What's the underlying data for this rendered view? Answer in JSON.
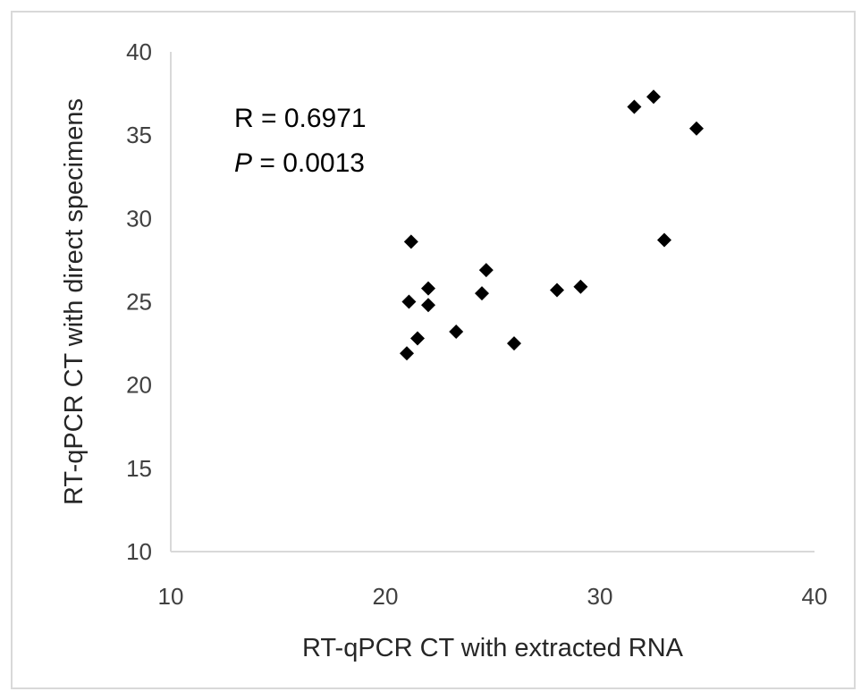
{
  "chart_data": {
    "type": "scatter",
    "xlabel": "RT-qPCR CT with extracted RNA",
    "ylabel": "RT-qPCR CT with direct specimens",
    "xlim": [
      10,
      40
    ],
    "ylim": [
      10,
      40
    ],
    "x_ticks": [
      "10",
      "20",
      "30",
      "40"
    ],
    "y_ticks": [
      "10",
      "15",
      "20",
      "25",
      "30",
      "35",
      "40"
    ],
    "grid": false,
    "legend": "none",
    "marker": "diamond",
    "marker_color": "#000000",
    "annotations": {
      "r_text": "R = 0.6971",
      "p_symbol": "P",
      "p_value_text": " = 0.0013"
    },
    "points": [
      {
        "x": 21.0,
        "y": 21.9
      },
      {
        "x": 21.5,
        "y": 22.8
      },
      {
        "x": 21.2,
        "y": 28.6
      },
      {
        "x": 21.1,
        "y": 25.0
      },
      {
        "x": 22.0,
        "y": 24.8
      },
      {
        "x": 22.0,
        "y": 25.8
      },
      {
        "x": 23.3,
        "y": 23.2
      },
      {
        "x": 24.5,
        "y": 25.5
      },
      {
        "x": 24.7,
        "y": 26.9
      },
      {
        "x": 26.0,
        "y": 22.5
      },
      {
        "x": 28.0,
        "y": 25.7
      },
      {
        "x": 29.1,
        "y": 25.9
      },
      {
        "x": 31.6,
        "y": 36.7
      },
      {
        "x": 32.5,
        "y": 37.3
      },
      {
        "x": 33.0,
        "y": 28.7
      },
      {
        "x": 34.5,
        "y": 35.4
      }
    ]
  }
}
